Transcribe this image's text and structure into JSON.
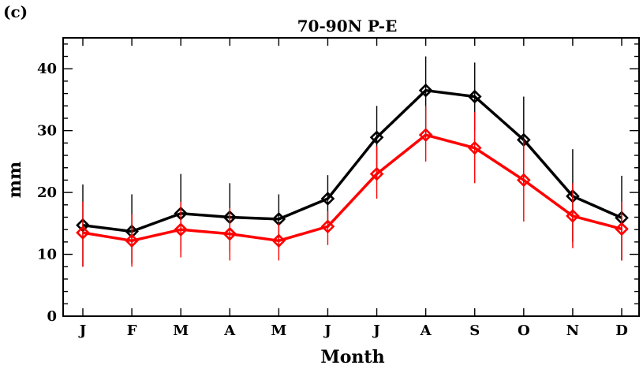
{
  "panel_label": "(c)",
  "chart_data": {
    "type": "line",
    "title": "70-90N P-E",
    "xlabel": "Month",
    "ylabel": "mm",
    "categories": [
      "J",
      "F",
      "M",
      "A",
      "M",
      "J",
      "J",
      "A",
      "S",
      "O",
      "N",
      "D"
    ],
    "ylim": [
      0,
      45
    ],
    "yticks": [
      0,
      10,
      20,
      30,
      40
    ],
    "grid": false,
    "series": [
      {
        "color": "#000000",
        "marker": "diamond",
        "values": [
          14.7,
          13.7,
          16.6,
          16.0,
          15.7,
          19.0,
          28.9,
          36.5,
          35.5,
          28.5,
          19.4,
          15.9
        ],
        "err_low": [
          8.0,
          8.5,
          10.5,
          10.5,
          11.0,
          15.0,
          22.5,
          29.5,
          30.0,
          21.0,
          12.0,
          9.0
        ],
        "err_high": [
          21.3,
          19.7,
          23.0,
          21.5,
          19.7,
          22.8,
          34.0,
          42.0,
          41.0,
          35.5,
          27.0,
          22.7
        ]
      },
      {
        "color": "#ff0000",
        "marker": "diamond",
        "values": [
          13.5,
          12.2,
          14.0,
          13.3,
          12.2,
          14.5,
          23.0,
          29.3,
          27.2,
          22.0,
          16.2,
          14.1
        ],
        "err_low": [
          8.0,
          8.0,
          9.5,
          9.0,
          9.0,
          11.5,
          19.0,
          25.0,
          21.5,
          15.3,
          11.0,
          9.0
        ],
        "err_high": [
          18.5,
          16.5,
          18.5,
          17.5,
          15.0,
          17.0,
          27.5,
          34.0,
          33.0,
          28.5,
          21.5,
          18.5
        ]
      }
    ]
  }
}
